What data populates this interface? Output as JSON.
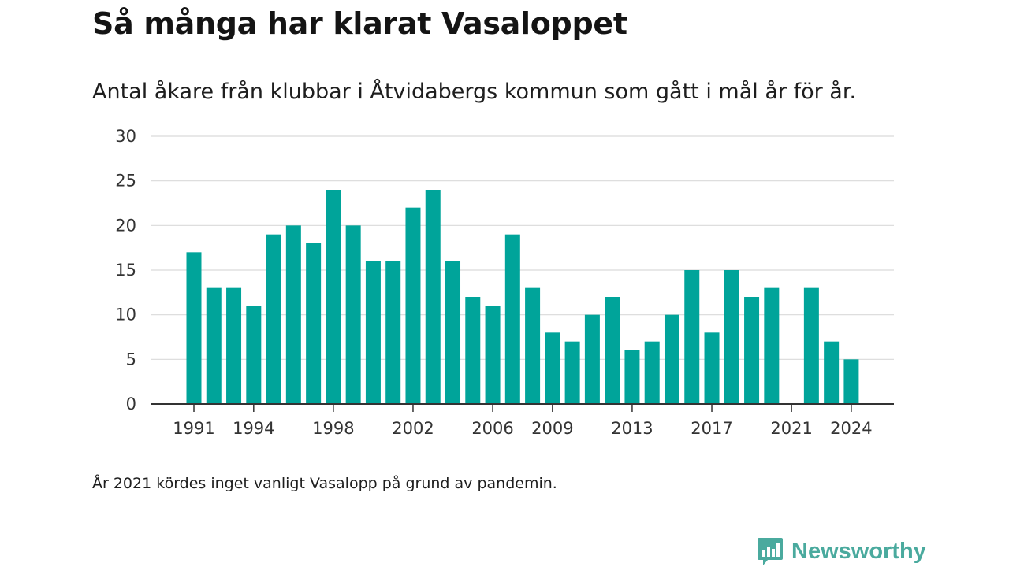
{
  "title": "Så många har klarat Vasaloppet",
  "subtitle": "Antal åkare från klubbar i Åtvidabergs kommun som gått i mål år för år.",
  "note": "År 2021 kördes inget vanligt Vasalopp på grund av pandemin.",
  "logo": {
    "text": "Newsworthy",
    "color": "#4aaa9e"
  },
  "colors": {
    "bar": "#00a49a",
    "grid": "#d9d9d9",
    "axis": "#333333"
  },
  "chart_data": {
    "type": "bar",
    "categories": [
      "1991",
      "1992",
      "1993",
      "1994",
      "1995",
      "1996",
      "1997",
      "1998",
      "1999",
      "2000",
      "2001",
      "2002",
      "2003",
      "2004",
      "2005",
      "2006",
      "2007",
      "2008",
      "2009",
      "2010",
      "2011",
      "2012",
      "2013",
      "2014",
      "2015",
      "2016",
      "2017",
      "2018",
      "2019",
      "2020",
      "2021",
      "2022",
      "2023",
      "2024"
    ],
    "values": [
      17,
      13,
      13,
      11,
      19,
      20,
      18,
      24,
      20,
      16,
      16,
      22,
      24,
      16,
      12,
      11,
      19,
      13,
      8,
      7,
      10,
      12,
      6,
      7,
      10,
      15,
      8,
      15,
      12,
      13,
      null,
      13,
      7,
      5
    ],
    "x_tick_labels": [
      "1991",
      "1994",
      "1998",
      "2002",
      "2006",
      "2009",
      "2013",
      "2017",
      "2021",
      "2024"
    ],
    "y_ticks": [
      0,
      5,
      10,
      15,
      20,
      25,
      30
    ],
    "ylim": [
      0,
      30
    ],
    "grid": true,
    "legend": "none"
  }
}
